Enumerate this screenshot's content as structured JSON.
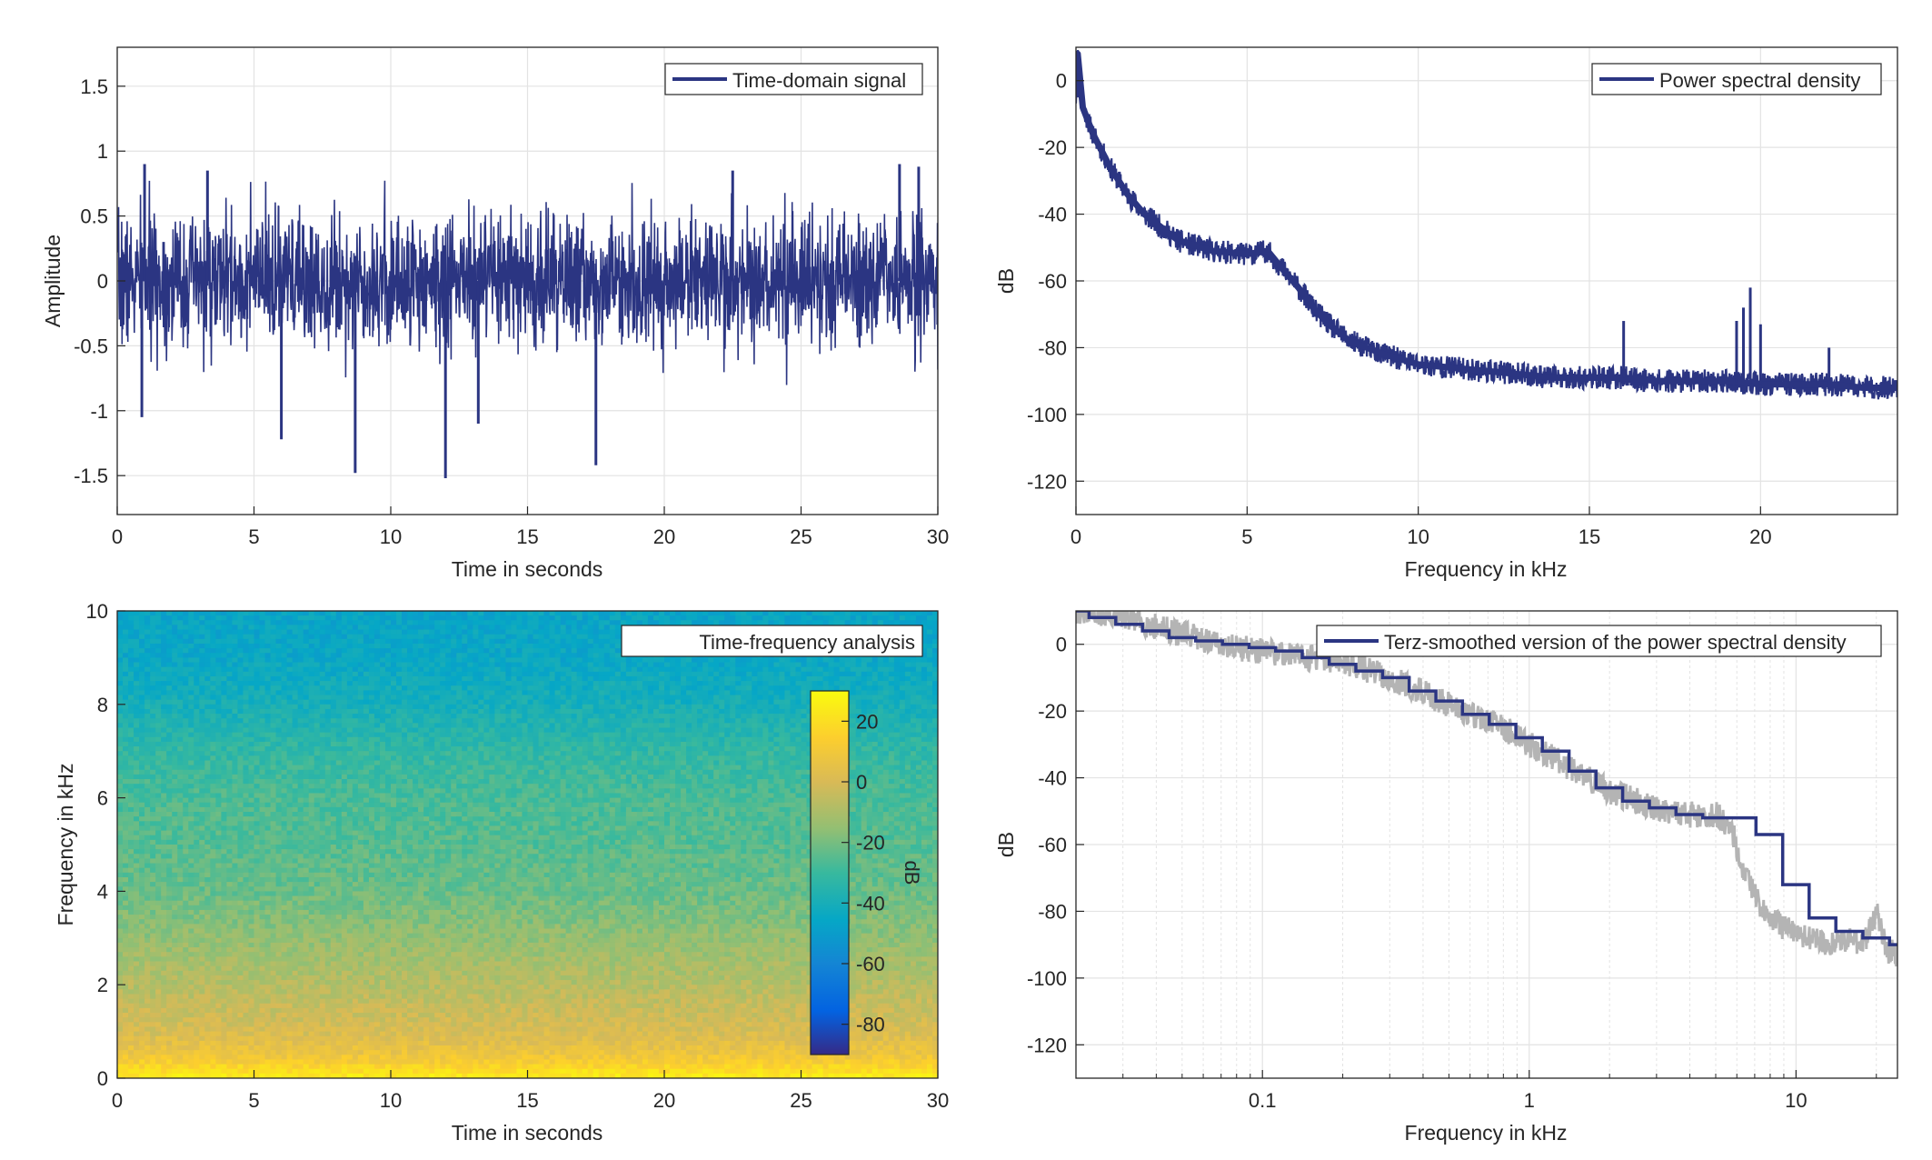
{
  "colors": {
    "signal": "#2b3582",
    "smoothed_raw": "#b4b4b4",
    "grid": "#e3e3e3",
    "axis": "#262626"
  },
  "chart_data": [
    {
      "id": "time-domain",
      "type": "line",
      "legend": [
        "Time-domain signal"
      ],
      "legend_location": "top-right",
      "xlabel": "Time in seconds",
      "ylabel": "Amplitude",
      "xlim": [
        0,
        30
      ],
      "ylim": [
        -1.8,
        1.8
      ],
      "xticks": [
        0,
        5,
        10,
        15,
        20,
        25,
        30
      ],
      "yticks": [
        -1.5,
        -1,
        -0.5,
        0,
        0.5,
        1,
        1.5
      ],
      "ytick_labels": [
        "-1.5",
        "-1",
        "-0.5",
        "0",
        "0.5",
        "1",
        "1.5"
      ],
      "grid": true,
      "signal_envelope": 0.55,
      "peaks": [
        {
          "x": 1.0,
          "y": 0.9
        },
        {
          "x": 3.3,
          "y": 0.85
        },
        {
          "x": 8.7,
          "y": -1.48
        },
        {
          "x": 12.0,
          "y": -1.52
        },
        {
          "x": 13.2,
          "y": -1.1
        },
        {
          "x": 17.5,
          "y": -1.42
        },
        {
          "x": 22.5,
          "y": 0.85
        },
        {
          "x": 28.6,
          "y": 0.9
        },
        {
          "x": 29.3,
          "y": 0.88
        },
        {
          "x": 6.0,
          "y": -1.22
        },
        {
          "x": 0.9,
          "y": -1.05
        }
      ]
    },
    {
      "id": "psd",
      "type": "line",
      "legend": [
        "Power spectral density"
      ],
      "legend_location": "top-right",
      "xlabel": "Frequency in kHz",
      "ylabel": "dB",
      "xlim": [
        0,
        24
      ],
      "ylim": [
        -130,
        10
      ],
      "xticks": [
        0,
        5,
        10,
        15,
        20
      ],
      "yticks": [
        -120,
        -100,
        -80,
        -60,
        -40,
        -20,
        0
      ],
      "ytick_labels": [
        "-120",
        "-100",
        "-80",
        "-60",
        "-40",
        "-20",
        "0"
      ],
      "grid": true,
      "x": [
        0,
        0.05,
        0.2,
        0.5,
        1,
        1.5,
        2,
        2.5,
        3,
        4,
        5,
        5.6,
        6,
        6.5,
        7,
        7.5,
        8,
        9,
        10,
        11,
        12,
        13,
        14,
        15,
        16,
        17,
        18,
        19,
        20,
        21,
        22,
        23,
        24
      ],
      "y": [
        -5,
        8,
        -8,
        -16,
        -26,
        -34,
        -40,
        -44,
        -48,
        -51,
        -52,
        -51,
        -56,
        -62,
        -69,
        -74,
        -78,
        -82,
        -85,
        -86,
        -87,
        -88,
        -89,
        -89,
        -89,
        -90,
        -90,
        -90,
        -91,
        -91,
        -91,
        -92,
        -92
      ],
      "spikes": [
        {
          "x": 16.0,
          "y": -72
        },
        {
          "x": 19.3,
          "y": -72
        },
        {
          "x": 19.5,
          "y": -68
        },
        {
          "x": 19.7,
          "y": -62
        },
        {
          "x": 20.0,
          "y": -73
        },
        {
          "x": 22.0,
          "y": -80
        }
      ]
    },
    {
      "id": "spectrogram",
      "type": "heatmap",
      "legend": [
        "Time-frequency analysis"
      ],
      "legend_location": "top-right",
      "xlabel": "Time in seconds",
      "ylabel": "Frequency in kHz",
      "xlim": [
        0,
        30
      ],
      "ylim": [
        0,
        10
      ],
      "xticks": [
        0,
        5,
        10,
        15,
        20,
        25,
        30
      ],
      "yticks": [
        0,
        2,
        4,
        6,
        8,
        10
      ],
      "ytick_labels": [
        "0",
        "2",
        "4",
        "6",
        "8",
        "10"
      ],
      "colorbar": {
        "label": "dB",
        "range": [
          -90,
          30
        ],
        "ticks": [
          -80,
          -60,
          -40,
          -20,
          0,
          20
        ],
        "tick_labels": [
          "-80",
          "-60",
          "-40",
          "-20",
          "0",
          "20"
        ],
        "colormap": "parula"
      },
      "freq_profile": [
        {
          "f": 0,
          "db": 25
        },
        {
          "f": 0.5,
          "db": 8
        },
        {
          "f": 1,
          "db": 0
        },
        {
          "f": 2,
          "db": -8
        },
        {
          "f": 3,
          "db": -15
        },
        {
          "f": 4,
          "db": -22
        },
        {
          "f": 5,
          "db": -25
        },
        {
          "f": 6,
          "db": -27
        },
        {
          "f": 7,
          "db": -32
        },
        {
          "f": 8,
          "db": -40
        },
        {
          "f": 9,
          "db": -45
        },
        {
          "f": 10,
          "db": -46
        }
      ]
    },
    {
      "id": "terz-smoothed",
      "type": "line",
      "legend": [
        "Terz-smoothed version of the power spectral density"
      ],
      "legend_location": "top-right",
      "xlabel": "Frequency in kHz",
      "ylabel": "dB",
      "xscale": "log",
      "xlim": [
        0.02,
        24
      ],
      "ylim": [
        -130,
        10
      ],
      "xticks": [
        0.1,
        1,
        10
      ],
      "xtick_labels": [
        "0.1",
        "1",
        "10"
      ],
      "yticks": [
        -120,
        -100,
        -80,
        -60,
        -40,
        -20,
        0
      ],
      "ytick_labels": [
        "-120",
        "-100",
        "-80",
        "-60",
        "-40",
        "-20",
        "0"
      ],
      "grid": true,
      "raw_x": [
        0.02,
        0.03,
        0.05,
        0.08,
        0.1,
        0.15,
        0.2,
        0.3,
        0.5,
        0.8,
        1,
        1.5,
        2,
        3,
        4,
        5,
        5.7,
        6.5,
        7.5,
        9,
        11,
        14,
        16,
        18,
        20,
        22,
        24
      ],
      "raw_y": [
        10,
        8,
        3,
        -1,
        -2,
        -4,
        -5,
        -10,
        -18,
        -25,
        -30,
        -38,
        -44,
        -49,
        -51,
        -51,
        -55,
        -70,
        -80,
        -85,
        -88,
        -90,
        -88,
        -90,
        -80,
        -92,
        -93
      ],
      "steps_edges": [
        0.02,
        0.0224,
        0.0282,
        0.0355,
        0.0447,
        0.0562,
        0.0708,
        0.0891,
        0.112,
        0.141,
        0.178,
        0.224,
        0.282,
        0.355,
        0.447,
        0.562,
        0.708,
        0.891,
        1.12,
        1.41,
        1.78,
        2.24,
        2.82,
        3.55,
        4.47,
        5.62,
        7.08,
        8.91,
        11.2,
        14.1,
        17.8,
        22.4,
        24
      ],
      "steps_values": [
        10,
        8,
        6,
        4,
        2,
        1,
        0,
        -1,
        -2,
        -4,
        -6,
        -8,
        -10,
        -14,
        -17,
        -21,
        -24,
        -28,
        -32,
        -38,
        -43,
        -47,
        -49,
        -51,
        -52,
        -52,
        -57,
        -72,
        -82,
        -86,
        -88,
        -90,
        -90
      ]
    }
  ]
}
